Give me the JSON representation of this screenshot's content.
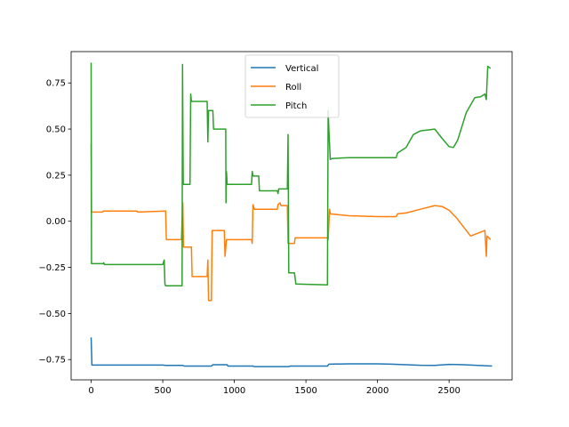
{
  "chart_data": {
    "type": "line",
    "title": "",
    "xlabel": "",
    "ylabel": "",
    "xlim": [
      -140,
      2940
    ],
    "ylim": [
      -0.86,
      0.92
    ],
    "xticks": [
      0,
      500,
      1000,
      1500,
      2000,
      2500
    ],
    "yticks": [
      -0.75,
      -0.5,
      -0.25,
      0.0,
      0.25,
      0.5,
      0.75
    ],
    "grid": false,
    "legend": {
      "placement": "top-center",
      "entries": [
        "Vertical",
        "Roll",
        "Pitch"
      ]
    },
    "series": [
      {
        "name": "Vertical",
        "color": "#1f77b4",
        "points": [
          [
            0,
            -0.63
          ],
          [
            5,
            -0.78
          ],
          [
            500,
            -0.78
          ],
          [
            520,
            -0.782
          ],
          [
            640,
            -0.782
          ],
          [
            650,
            -0.785
          ],
          [
            840,
            -0.785
          ],
          [
            850,
            -0.778
          ],
          [
            950,
            -0.778
          ],
          [
            955,
            -0.785
          ],
          [
            1130,
            -0.785
          ],
          [
            1140,
            -0.788
          ],
          [
            1380,
            -0.788
          ],
          [
            1390,
            -0.785
          ],
          [
            1650,
            -0.785
          ],
          [
            1660,
            -0.775
          ],
          [
            1800,
            -0.773
          ],
          [
            2000,
            -0.773
          ],
          [
            2100,
            -0.775
          ],
          [
            2200,
            -0.778
          ],
          [
            2300,
            -0.781
          ],
          [
            2400,
            -0.782
          ],
          [
            2500,
            -0.776
          ],
          [
            2600,
            -0.778
          ],
          [
            2700,
            -0.782
          ],
          [
            2800,
            -0.785
          ]
        ]
      },
      {
        "name": "Roll",
        "color": "#ff7f0e",
        "points": [
          [
            0,
            0.42
          ],
          [
            2,
            0.05
          ],
          [
            80,
            0.05
          ],
          [
            85,
            0.055
          ],
          [
            320,
            0.055
          ],
          [
            325,
            0.05
          ],
          [
            520,
            0.055
          ],
          [
            525,
            -0.1
          ],
          [
            630,
            -0.1
          ],
          [
            640,
            0.1
          ],
          [
            645,
            -0.14
          ],
          [
            700,
            -0.14
          ],
          [
            705,
            -0.3
          ],
          [
            810,
            -0.3
          ],
          [
            815,
            -0.21
          ],
          [
            820,
            -0.43
          ],
          [
            840,
            -0.43
          ],
          [
            845,
            -0.05
          ],
          [
            930,
            -0.05
          ],
          [
            935,
            -0.19
          ],
          [
            945,
            -0.1
          ],
          [
            1120,
            -0.1
          ],
          [
            1125,
            -0.12
          ],
          [
            1130,
            0.09
          ],
          [
            1140,
            0.065
          ],
          [
            1300,
            0.065
          ],
          [
            1305,
            0.09
          ],
          [
            1320,
            0.1
          ],
          [
            1325,
            0.085
          ],
          [
            1370,
            0.085
          ],
          [
            1375,
            -0.12
          ],
          [
            1420,
            -0.12
          ],
          [
            1425,
            -0.09
          ],
          [
            1650,
            -0.09
          ],
          [
            1655,
            -0.1
          ],
          [
            1665,
            0.065
          ],
          [
            1670,
            0.04
          ],
          [
            1800,
            0.03
          ],
          [
            2000,
            0.025
          ],
          [
            2130,
            0.025
          ],
          [
            2140,
            0.04
          ],
          [
            2200,
            0.045
          ],
          [
            2300,
            0.065
          ],
          [
            2400,
            0.085
          ],
          [
            2450,
            0.08
          ],
          [
            2500,
            0.06
          ],
          [
            2550,
            0.02
          ],
          [
            2600,
            -0.03
          ],
          [
            2650,
            -0.08
          ],
          [
            2700,
            -0.065
          ],
          [
            2750,
            -0.05
          ],
          [
            2760,
            -0.19
          ],
          [
            2765,
            -0.08
          ],
          [
            2790,
            -0.1
          ]
        ]
      },
      {
        "name": "Pitch",
        "color": "#2ca02c",
        "points": [
          [
            0,
            0.86
          ],
          [
            2,
            -0.23
          ],
          [
            85,
            -0.23
          ],
          [
            88,
            -0.225
          ],
          [
            92,
            -0.235
          ],
          [
            500,
            -0.235
          ],
          [
            510,
            -0.21
          ],
          [
            515,
            -0.34
          ],
          [
            520,
            -0.35
          ],
          [
            635,
            -0.35
          ],
          [
            638,
            0.85
          ],
          [
            643,
            0.2
          ],
          [
            690,
            0.2
          ],
          [
            695,
            0.69
          ],
          [
            700,
            0.65
          ],
          [
            810,
            0.65
          ],
          [
            815,
            0.43
          ],
          [
            820,
            0.6
          ],
          [
            850,
            0.6
          ],
          [
            855,
            0.5
          ],
          [
            940,
            0.5
          ],
          [
            942,
            0.1
          ],
          [
            945,
            0.27
          ],
          [
            950,
            0.2
          ],
          [
            1120,
            0.2
          ],
          [
            1125,
            0.27
          ],
          [
            1130,
            0.245
          ],
          [
            1170,
            0.245
          ],
          [
            1175,
            0.165
          ],
          [
            1300,
            0.165
          ],
          [
            1305,
            0.15
          ],
          [
            1310,
            0.175
          ],
          [
            1370,
            0.175
          ],
          [
            1375,
            0.47
          ],
          [
            1380,
            -0.28
          ],
          [
            1420,
            -0.28
          ],
          [
            1430,
            -0.34
          ],
          [
            1650,
            -0.345
          ],
          [
            1655,
            0.6
          ],
          [
            1660,
            0.5
          ],
          [
            1670,
            0.335
          ],
          [
            1680,
            0.34
          ],
          [
            1800,
            0.345
          ],
          [
            2000,
            0.345
          ],
          [
            2130,
            0.345
          ],
          [
            2140,
            0.37
          ],
          [
            2200,
            0.4
          ],
          [
            2250,
            0.47
          ],
          [
            2300,
            0.49
          ],
          [
            2400,
            0.5
          ],
          [
            2450,
            0.45
          ],
          [
            2500,
            0.405
          ],
          [
            2530,
            0.4
          ],
          [
            2560,
            0.44
          ],
          [
            2620,
            0.59
          ],
          [
            2680,
            0.67
          ],
          [
            2720,
            0.675
          ],
          [
            2750,
            0.69
          ],
          [
            2760,
            0.66
          ],
          [
            2770,
            0.84
          ],
          [
            2790,
            0.83
          ]
        ]
      }
    ]
  }
}
